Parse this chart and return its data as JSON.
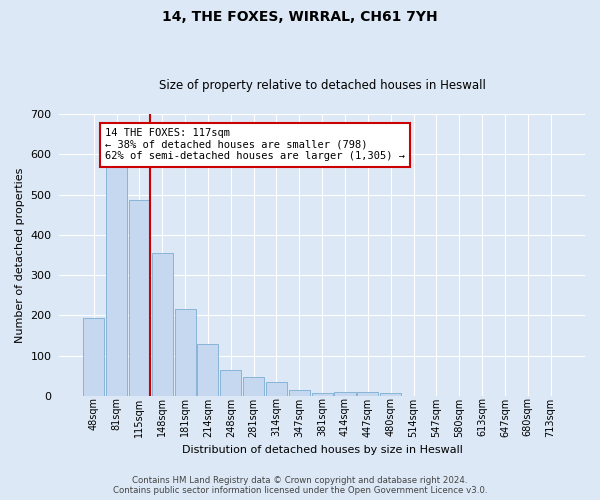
{
  "title": "14, THE FOXES, WIRRAL, CH61 7YH",
  "subtitle": "Size of property relative to detached houses in Heswall",
  "xlabel": "Distribution of detached houses by size in Heswall",
  "ylabel": "Number of detached properties",
  "footer_line1": "Contains HM Land Registry data © Crown copyright and database right 2024.",
  "footer_line2": "Contains public sector information licensed under the Open Government Licence v3.0.",
  "annotation_line1": "14 THE FOXES: 117sqm",
  "annotation_line2": "← 38% of detached houses are smaller (798)",
  "annotation_line3": "62% of semi-detached houses are larger (1,305) →",
  "categories": [
    "48sqm",
    "81sqm",
    "115sqm",
    "148sqm",
    "181sqm",
    "214sqm",
    "248sqm",
    "281sqm",
    "314sqm",
    "347sqm",
    "381sqm",
    "414sqm",
    "447sqm",
    "480sqm",
    "514sqm",
    "547sqm",
    "580sqm",
    "613sqm",
    "647sqm",
    "680sqm",
    "713sqm"
  ],
  "values": [
    193,
    580,
    487,
    355,
    215,
    130,
    65,
    48,
    35,
    15,
    8,
    10,
    10,
    7,
    0,
    0,
    0,
    0,
    0,
    0,
    0
  ],
  "bar_color": "#c5d8f0",
  "bar_edge_color": "#7aadd4",
  "vline_color": "#cc0000",
  "annotation_box_edge": "#cc0000",
  "annotation_box_face": "#ffffff",
  "background_color": "#dce8f5",
  "plot_bg_color": "#dce8f5",
  "ylim": [
    0,
    700
  ],
  "yticks": [
    0,
    100,
    200,
    300,
    400,
    500,
    600,
    700
  ],
  "title_fontsize": 10,
  "subtitle_fontsize": 8.5,
  "xlabel_fontsize": 8,
  "ylabel_fontsize": 8,
  "tick_fontsize": 8,
  "xtick_fontsize": 7
}
